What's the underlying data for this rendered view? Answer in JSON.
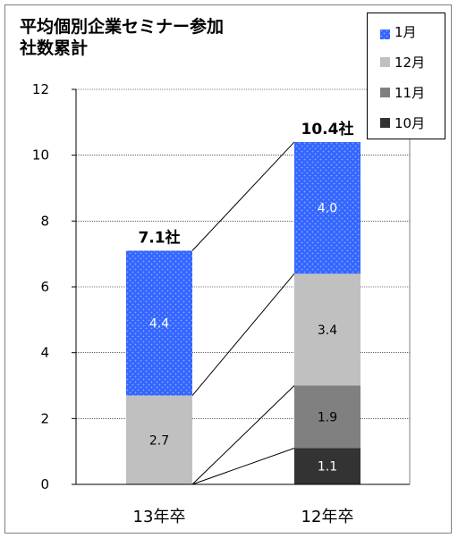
{
  "chart_data": {
    "type": "bar",
    "stacked": true,
    "title_lines": [
      "平均個別企業セミナー参加",
      "社数累計"
    ],
    "categories": [
      "13年卒",
      "12年卒"
    ],
    "series": [
      {
        "name": "10月",
        "color": "#333333",
        "label_color": "#ffffff",
        "pattern": false,
        "values": [
          0,
          1.1
        ],
        "labels": [
          "",
          "1.1"
        ]
      },
      {
        "name": "11月",
        "color": "#808080",
        "label_color": "#000000",
        "pattern": false,
        "values": [
          0,
          1.9
        ],
        "labels": [
          "",
          "1.9"
        ]
      },
      {
        "name": "12月",
        "color": "#c0c0c0",
        "label_color": "#000000",
        "pattern": false,
        "values": [
          2.7,
          3.4
        ],
        "labels": [
          "2.7",
          "3.4"
        ]
      },
      {
        "name": "1月",
        "color": "#3366ff",
        "label_color": "#ffffff",
        "pattern": true,
        "values": [
          4.4,
          4.0
        ],
        "labels": [
          "4.4",
          "4.0"
        ]
      }
    ],
    "totals": [
      7.1,
      10.4
    ],
    "total_labels": [
      "7.1社",
      "10.4社"
    ],
    "ylim": [
      0,
      12
    ],
    "yticks": [
      "0",
      "2",
      "4",
      "6",
      "8",
      "10",
      "12"
    ],
    "grid": true,
    "legend_position": "top-right",
    "legend_order": [
      "1月",
      "12月",
      "11月",
      "10月"
    ],
    "connector_lines": true
  }
}
